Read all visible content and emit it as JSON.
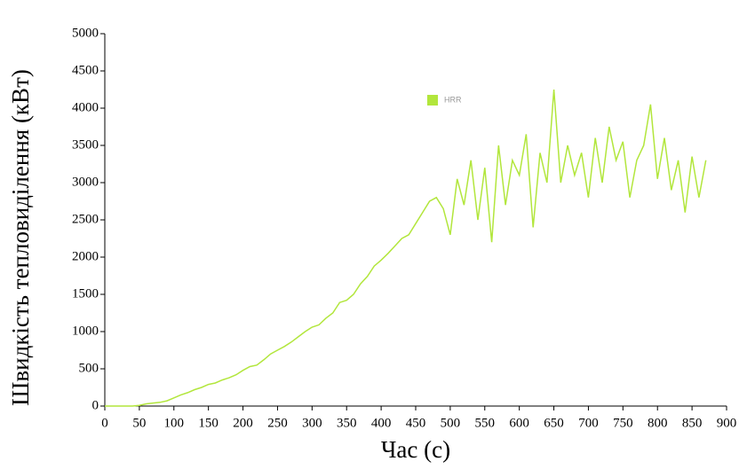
{
  "chart_data": {
    "type": "line",
    "x_label": "Час (с)",
    "y_label": "Швидкість тепловиділення (кВт)",
    "x": [
      0,
      10,
      20,
      30,
      40,
      50,
      60,
      70,
      80,
      90,
      100,
      110,
      120,
      130,
      140,
      150,
      160,
      170,
      180,
      190,
      200,
      210,
      220,
      230,
      240,
      250,
      260,
      270,
      280,
      290,
      300,
      310,
      320,
      330,
      340,
      350,
      360,
      370,
      380,
      390,
      400,
      410,
      420,
      430,
      440,
      450,
      460,
      470,
      480,
      490,
      500,
      510,
      520,
      530,
      540,
      550,
      560,
      570,
      580,
      590,
      600,
      610,
      620,
      630,
      640,
      650,
      660,
      670,
      680,
      690,
      700,
      710,
      720,
      730,
      740,
      750,
      760,
      770,
      780,
      790,
      800,
      810,
      820,
      830,
      840,
      850,
      860,
      870
    ],
    "series": [
      {
        "name": "HRR",
        "color": "#b2e63c",
        "values": [
          0,
          0,
          0,
          0,
          0,
          10,
          30,
          40,
          50,
          70,
          110,
          150,
          180,
          220,
          250,
          290,
          310,
          350,
          380,
          420,
          480,
          530,
          550,
          620,
          700,
          750,
          800,
          860,
          930,
          1000,
          1060,
          1090,
          1180,
          1250,
          1390,
          1420,
          1500,
          1640,
          1740,
          1880,
          1960,
          2050,
          2150,
          2250,
          2300,
          2450,
          2600,
          2750,
          2800,
          2650,
          2300,
          3050,
          2700,
          3300,
          2500,
          3200,
          2200,
          3500,
          2700,
          3300,
          3100,
          3650,
          2400,
          3400,
          3000,
          4250,
          3000,
          3500,
          3100,
          3400,
          2800,
          3600,
          3000,
          3750,
          3300,
          3550,
          2800,
          3300,
          3500,
          4050,
          3050,
          3600,
          2900,
          3300,
          2600,
          3350,
          2800,
          3300
        ]
      }
    ],
    "xlim": [
      0,
      900
    ],
    "xticks": [
      0,
      50,
      100,
      150,
      200,
      250,
      300,
      350,
      400,
      450,
      500,
      550,
      600,
      650,
      700,
      750,
      800,
      850,
      900
    ],
    "ylim": [
      0,
      5000
    ],
    "yticks": [
      0,
      500,
      1000,
      1500,
      2000,
      2500,
      3000,
      3500,
      4000,
      4500,
      5000
    ],
    "grid": false,
    "legend": "top"
  }
}
